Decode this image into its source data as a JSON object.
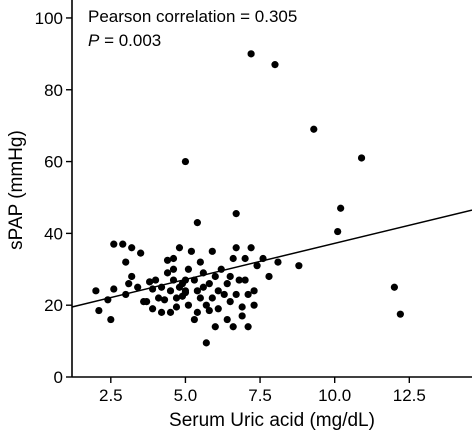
{
  "chart_data": {
    "type": "scatter",
    "xlabel": "Serum Uric acid (mg/dL)",
    "ylabel": "sPAP (mmHg)",
    "xlim": [
      1.2,
      14.6
    ],
    "ylim": [
      0,
      105
    ],
    "xticks": [
      "2.5",
      "5.0",
      "7.5",
      "10.0",
      "12.5"
    ],
    "xtick_values": [
      2.5,
      5.0,
      7.5,
      10.0,
      12.5
    ],
    "yticks": [
      "0",
      "20",
      "40",
      "60",
      "80",
      "100"
    ],
    "ytick_values": [
      0,
      20,
      40,
      60,
      80,
      100
    ],
    "annotation": {
      "line1": "Pearson correlation = 0.305",
      "p_label": "P",
      "p_value": " = 0.003"
    },
    "fit_line": {
      "x": [
        1.2,
        14.6
      ],
      "y": [
        19.5,
        46.5
      ]
    },
    "points": [
      [
        7.2,
        90
      ],
      [
        8.0,
        87
      ],
      [
        9.3,
        69
      ],
      [
        10.9,
        61
      ],
      [
        5.0,
        60
      ],
      [
        10.2,
        47
      ],
      [
        10.1,
        40.5
      ],
      [
        6.7,
        45.5
      ],
      [
        5.4,
        43
      ],
      [
        12.0,
        25
      ],
      [
        12.2,
        17.5
      ],
      [
        8.8,
        31
      ],
      [
        2.0,
        24
      ],
      [
        2.1,
        18.5
      ],
      [
        2.4,
        21.5
      ],
      [
        2.5,
        16
      ],
      [
        2.6,
        37
      ],
      [
        2.6,
        24.5
      ],
      [
        2.9,
        37
      ],
      [
        3.0,
        23
      ],
      [
        3.1,
        26
      ],
      [
        3.2,
        28
      ],
      [
        3.2,
        36
      ],
      [
        3.4,
        25
      ],
      [
        3.5,
        34.5
      ],
      [
        3.6,
        21
      ],
      [
        3.7,
        21
      ],
      [
        3.8,
        26.5
      ],
      [
        3.9,
        19
      ],
      [
        3.9,
        24.5
      ],
      [
        4.0,
        27
      ],
      [
        4.1,
        22
      ],
      [
        4.2,
        25
      ],
      [
        4.2,
        18
      ],
      [
        4.3,
        21.5
      ],
      [
        4.4,
        32.5
      ],
      [
        4.4,
        29
      ],
      [
        4.5,
        24
      ],
      [
        4.5,
        18
      ],
      [
        4.6,
        33
      ],
      [
        4.6,
        27
      ],
      [
        4.7,
        22
      ],
      [
        4.7,
        19.5
      ],
      [
        4.8,
        36
      ],
      [
        4.8,
        25
      ],
      [
        4.9,
        26
      ],
      [
        4.9,
        22.5
      ],
      [
        5.0,
        24
      ],
      [
        5.0,
        27
      ],
      [
        5.1,
        20
      ],
      [
        5.1,
        30
      ],
      [
        5.2,
        35
      ],
      [
        5.3,
        16
      ],
      [
        5.3,
        27
      ],
      [
        5.4,
        18
      ],
      [
        5.4,
        24
      ],
      [
        5.5,
        32
      ],
      [
        5.5,
        22
      ],
      [
        5.6,
        29
      ],
      [
        5.6,
        25
      ],
      [
        5.7,
        9.5
      ],
      [
        5.7,
        20
      ],
      [
        5.8,
        26
      ],
      [
        5.8,
        18.5
      ],
      [
        5.9,
        35
      ],
      [
        5.9,
        22
      ],
      [
        6.0,
        28
      ],
      [
        6.0,
        14
      ],
      [
        6.1,
        24
      ],
      [
        6.1,
        19
      ],
      [
        6.2,
        30
      ],
      [
        6.3,
        23
      ],
      [
        6.4,
        16
      ],
      [
        6.4,
        26
      ],
      [
        6.5,
        28
      ],
      [
        6.5,
        21
      ],
      [
        6.6,
        14
      ],
      [
        6.6,
        33
      ],
      [
        6.7,
        36
      ],
      [
        6.7,
        23
      ],
      [
        6.8,
        27
      ],
      [
        6.9,
        19.5
      ],
      [
        6.9,
        17
      ],
      [
        7.0,
        33
      ],
      [
        7.0,
        27
      ],
      [
        7.1,
        14
      ],
      [
        7.1,
        23
      ],
      [
        7.2,
        36
      ],
      [
        7.3,
        24
      ],
      [
        7.3,
        20
      ],
      [
        7.4,
        31
      ],
      [
        7.6,
        33
      ],
      [
        7.8,
        28
      ],
      [
        8.1,
        32
      ],
      [
        3.0,
        32
      ],
      [
        4.6,
        30
      ],
      [
        5.0,
        23.5
      ]
    ]
  }
}
